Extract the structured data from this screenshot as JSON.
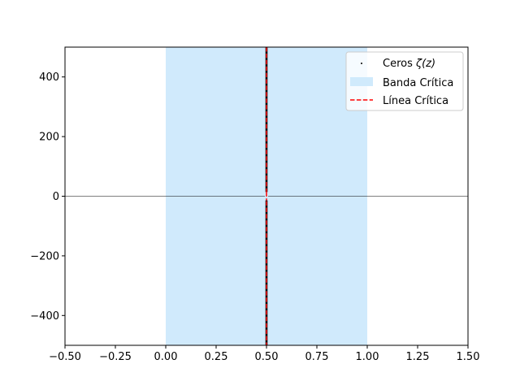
{
  "chart_data": {
    "type": "scatter",
    "title": "",
    "xlabel": "",
    "ylabel": "",
    "xlim": [
      -0.5,
      1.5
    ],
    "ylim": [
      -500,
      500
    ],
    "xticks": [
      -0.5,
      -0.25,
      0.0,
      0.25,
      0.5,
      0.75,
      1.0,
      1.25,
      1.5
    ],
    "xtick_labels": [
      "−0.50",
      "−0.25",
      "0.00",
      "0.25",
      "0.50",
      "0.75",
      "1.00",
      "1.25",
      "1.50"
    ],
    "yticks": [
      -400,
      -200,
      0,
      200,
      400
    ],
    "ytick_labels": [
      "−400",
      "−200",
      "0",
      "200",
      "400"
    ],
    "grid": false,
    "legend_position": "top-right",
    "critical_strip": {
      "x_range": [
        0.0,
        1.0
      ],
      "label": "Banda Crítica",
      "color": "#d0eafc"
    },
    "critical_line": {
      "x": 0.5,
      "label": "Línea Crítica",
      "color": "#ff0000",
      "style": "dashed"
    },
    "zeros": {
      "label": "Ceros ζ(z)",
      "label_prefix": "Ceros ",
      "label_math": "ζ(z)",
      "x": 0.5,
      "y_range": [
        -500,
        500
      ],
      "color": "#000000"
    },
    "horizontal_line": {
      "y": 0,
      "color": "#000000"
    }
  }
}
